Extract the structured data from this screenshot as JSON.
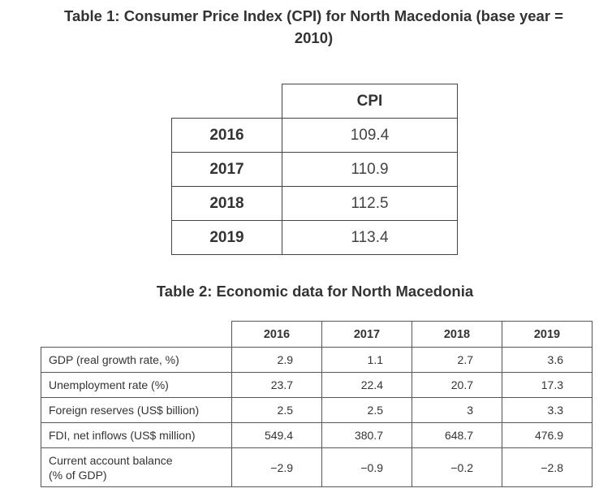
{
  "table1": {
    "title_line1": "Table 1: Consumer Price Index (CPI) for North Macedonia (base year =",
    "title_line2": "2010)",
    "column_header": "CPI",
    "rows": [
      {
        "year": "2016",
        "cpi": "109.4"
      },
      {
        "year": "2017",
        "cpi": "110.9"
      },
      {
        "year": "2018",
        "cpi": "112.5"
      },
      {
        "year": "2019",
        "cpi": "113.4"
      }
    ]
  },
  "table2": {
    "title": "Table 2: Economic data for North Macedonia",
    "years": [
      "2016",
      "2017",
      "2018",
      "2019"
    ],
    "rows": [
      {
        "label": "GDP (real growth rate, %)",
        "values": [
          "2.9",
          "1.1",
          "2.7",
          "3.6"
        ]
      },
      {
        "label": "Unemployment rate (%)",
        "values": [
          "23.7",
          "22.4",
          "20.7",
          "17.3"
        ]
      },
      {
        "label": "Foreign reserves (US$ billion)",
        "values": [
          "2.5",
          "2.5",
          "3",
          "3.3"
        ]
      },
      {
        "label": "FDI, net inflows (US$ million)",
        "values": [
          "549.4",
          "380.7",
          "648.7",
          "476.9"
        ]
      },
      {
        "label_line1": "Current account balance",
        "label_line2": "(% of GDP)",
        "values": [
          "−2.9",
          "−0.9",
          "−0.2",
          "−2.8"
        ]
      }
    ]
  }
}
